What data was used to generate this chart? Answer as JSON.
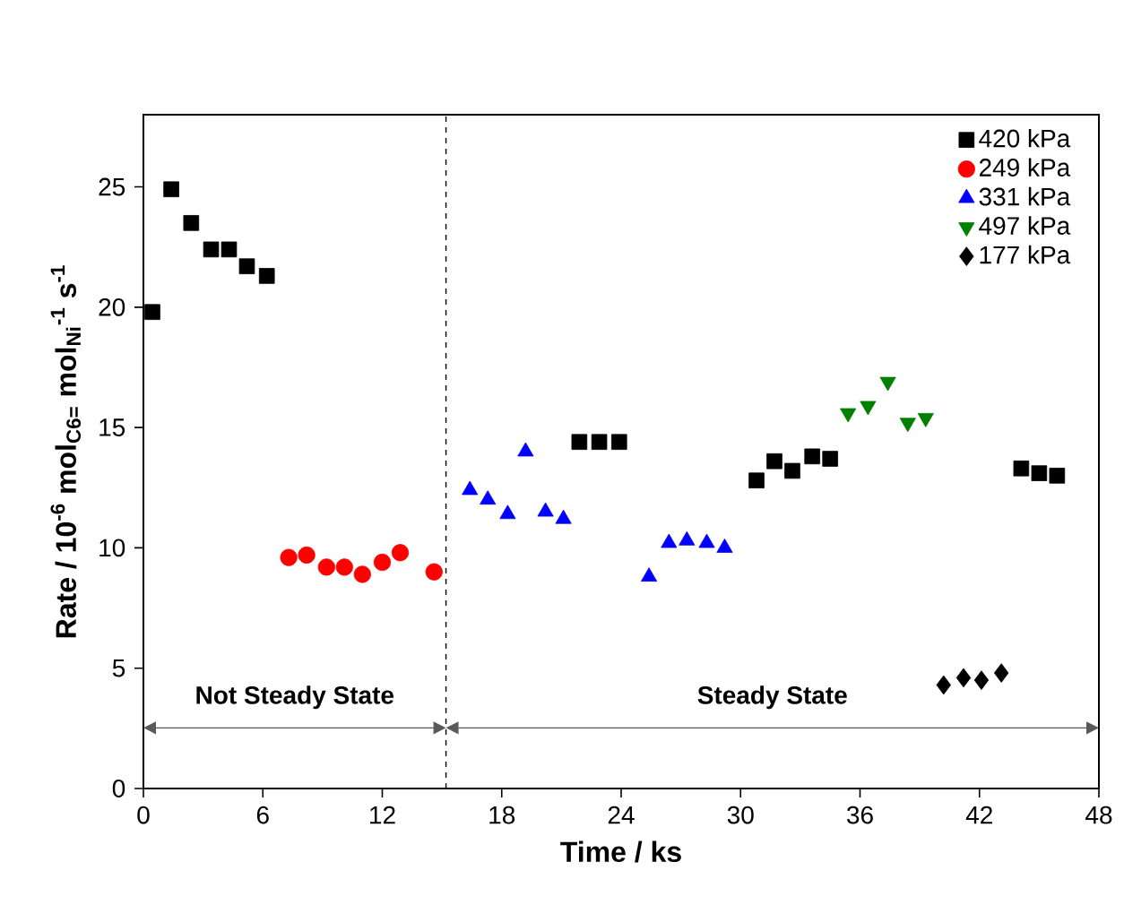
{
  "chart_data": {
    "type": "scatter",
    "xlabel": "Time / ks",
    "ylabel": "Rate / 10$^{-6}$ mol$_{C6=}$ mol$_{Ni}$$^{-1}$ s$^{-1}$",
    "series": [
      {
        "name": "420 kPa",
        "color": "#000000",
        "marker": "square",
        "x": [
          0.45,
          1.4,
          2.4,
          3.4,
          4.3,
          5.2,
          6.2,
          21.9,
          22.9,
          23.9,
          30.8,
          31.7,
          32.6,
          33.6,
          34.5,
          44.1,
          45.0,
          45.9
        ],
        "values": [
          19.8,
          24.9,
          23.5,
          22.4,
          22.4,
          21.7,
          21.3,
          14.4,
          14.4,
          14.4,
          12.8,
          13.6,
          13.2,
          13.8,
          13.7,
          13.3,
          13.1,
          13.0
        ]
      },
      {
        "name": "249 kPa",
        "color": "#ff0000",
        "marker": "circle",
        "x": [
          7.3,
          8.2,
          9.2,
          10.1,
          11.0,
          12.0,
          12.9,
          14.6
        ],
        "values": [
          9.6,
          9.7,
          9.2,
          9.2,
          8.9,
          9.4,
          9.8,
          9.0
        ]
      },
      {
        "name": "331 kPa",
        "color": "#0000ff",
        "marker": "triangle",
        "x": [
          16.4,
          17.3,
          18.3,
          19.2,
          20.2,
          21.1,
          25.4,
          26.4,
          27.3,
          28.3,
          29.2
        ],
        "values": [
          12.4,
          12.0,
          11.4,
          14.0,
          11.5,
          11.2,
          8.8,
          10.2,
          10.3,
          10.2,
          10.0
        ]
      },
      {
        "name": "497 kPa",
        "color": "#008000",
        "marker": "triangle-down",
        "x": [
          35.4,
          36.4,
          37.4,
          38.4,
          39.3
        ],
        "values": [
          15.6,
          15.9,
          16.9,
          15.2,
          15.4
        ]
      },
      {
        "name": "177 kPa",
        "color": "#000000",
        "marker": "diamond",
        "x": [
          40.2,
          41.2,
          42.1,
          43.1
        ],
        "values": [
          4.3,
          4.6,
          4.5,
          4.8
        ]
      }
    ],
    "xlim": [
      0,
      48
    ],
    "xticks": [
      0,
      6,
      12,
      18,
      24,
      30,
      36,
      42,
      48
    ],
    "ylim": [
      0,
      28
    ],
    "yticks": [
      0,
      5,
      10,
      15,
      20,
      25
    ],
    "ref_lines": [
      {
        "axis": "x",
        "value": 15.2,
        "line_style": "dashed"
      }
    ],
    "annotations": [
      "Not Steady State",
      "Steady State"
    ],
    "legend": "top right",
    "grid": false
  }
}
